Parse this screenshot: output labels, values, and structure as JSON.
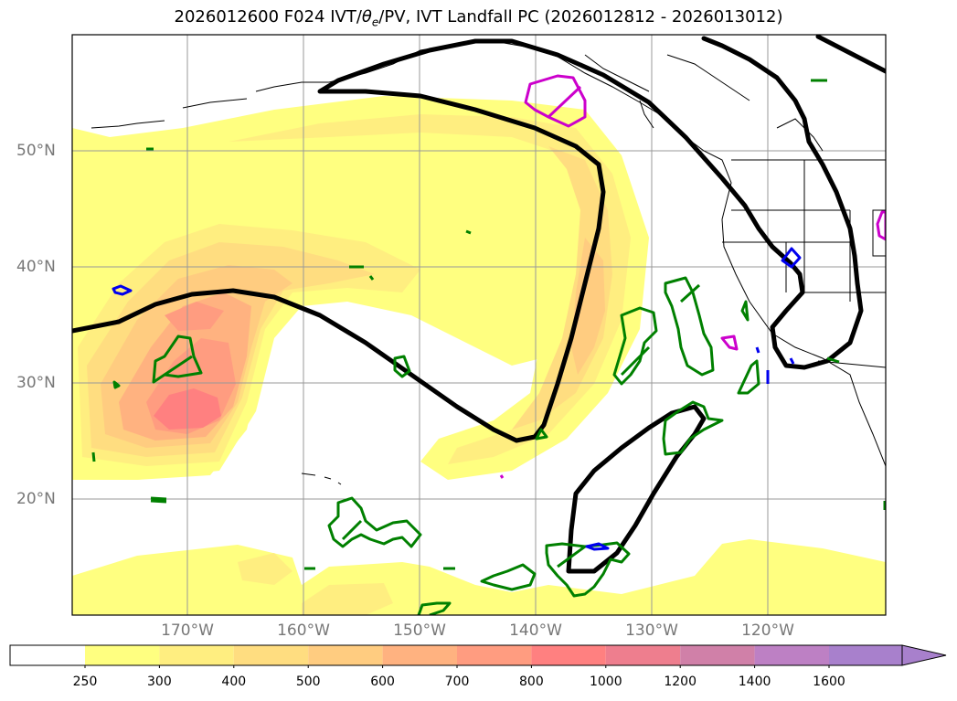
{
  "title": {
    "prefix": "2026012600 F024 IVT/",
    "theta": "θ",
    "theta_sub": "e",
    "suffix": "/PV, IVT Landfall PC (2026012812 - 2026013012)"
  },
  "axes": {
    "lat_labels": [
      "50°N",
      "40°N",
      "30°N",
      "20°N"
    ],
    "lon_labels": [
      "170°W",
      "160°W",
      "150°W",
      "140°W",
      "130°W",
      "120°W"
    ]
  },
  "colorbar": {
    "labels": [
      "250",
      "300",
      "400",
      "500",
      "600",
      "700",
      "800",
      "1000",
      "1200",
      "1400",
      "1600"
    ],
    "colors": [
      "#ffffff",
      "#ffff80",
      "#ffee80",
      "#ffdd80",
      "#ffcc80",
      "#ffb280",
      "#ff9c80",
      "#ff8080",
      "#ee7e8e",
      "#d080a8",
      "#bd80c4",
      "#a880cc"
    ],
    "extend": "max"
  },
  "legend_colors": {
    "contour": "#000000",
    "negative_pv": "#0000ee",
    "positive_pv": "#cc00cc",
    "theta_e": "#008000"
  }
}
